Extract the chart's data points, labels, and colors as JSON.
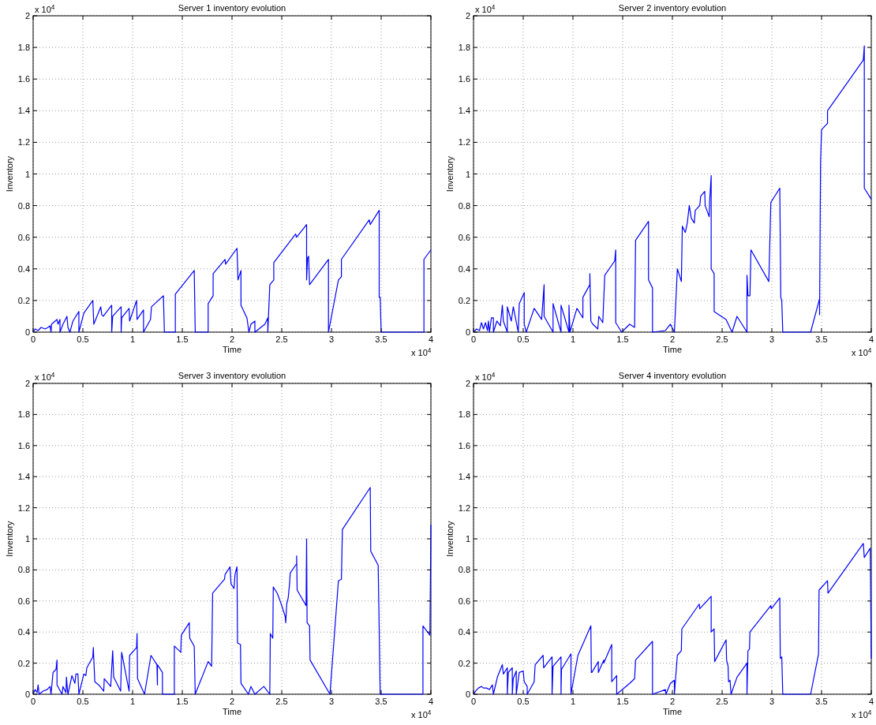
{
  "chart_data": [
    {
      "type": "line",
      "title": "Server 1 inventory evolution",
      "xlabel": "Time",
      "ylabel": "Inventory",
      "annotations": [
        "x 10$^{4}$",
        "x 10$^{4}$"
      ],
      "xlim": [
        0,
        4
      ],
      "ylim": [
        0,
        2
      ],
      "xticks": [
        0,
        0.5,
        1,
        1.5,
        2,
        2.5,
        3,
        3.5,
        4
      ],
      "yticks": [
        0,
        0.2,
        0.4,
        0.6,
        0.8,
        1,
        1.2,
        1.4,
        1.6,
        1.8,
        2
      ],
      "grid": true,
      "color": "#0000ff",
      "x": [
        0,
        0.02,
        0.05,
        0.08,
        0.12,
        0.15,
        0.17,
        0.18,
        0.185,
        0.24,
        0.25,
        0.27,
        0.27,
        0.3,
        0.34,
        0.35,
        0.37,
        0.4,
        0.46,
        0.46,
        0.51,
        0.6,
        0.61,
        0.68,
        0.69,
        0.705,
        0.79,
        0.79,
        0.8,
        0.885,
        0.885,
        0.89,
        0.965,
        0.97,
        1.04,
        1.045,
        1.11,
        1.11,
        1.18,
        1.19,
        1.31,
        1.32,
        1.43,
        1.43,
        1.62,
        1.63,
        1.76,
        1.76,
        1.81,
        1.81,
        1.93,
        1.935,
        2.05,
        2.06,
        2.09,
        2.09,
        2.15,
        2.17,
        2.19,
        2.23,
        2.23,
        2.33,
        2.36,
        2.36,
        2.38,
        2.42,
        2.42,
        2.64,
        2.65,
        2.75,
        2.75,
        2.76,
        2.77,
        2.78,
        2.97,
        2.97,
        3.07,
        3.1,
        3.1,
        3.38,
        3.39,
        3.48,
        3.48,
        3.49,
        3.5,
        3.93,
        3.93,
        4
      ],
      "values": [
        0,
        0.02,
        0.01,
        0.03,
        0.02,
        0.03,
        0.04,
        0,
        0.05,
        0.08,
        0.05,
        0.08,
        0,
        0.05,
        0.1,
        0.03,
        0,
        0.07,
        0.13,
        0,
        0.12,
        0.2,
        0.05,
        0.16,
        0.11,
        0.1,
        0.17,
        0,
        0.1,
        0.16,
        0,
        0.09,
        0.15,
        0.07,
        0.2,
        0.08,
        0.14,
        0,
        0.08,
        0.16,
        0.23,
        0,
        0,
        0.24,
        0.39,
        0,
        0,
        0.18,
        0.23,
        0.37,
        0.46,
        0.43,
        0.53,
        0.33,
        0.39,
        0.17,
        0.09,
        0,
        0.05,
        0.07,
        0,
        0.05,
        0.09,
        0,
        0.3,
        0.33,
        0.44,
        0.62,
        0.6,
        0.68,
        0.33,
        0.47,
        0.48,
        0.3,
        0.46,
        0,
        0.33,
        0.35,
        0.46,
        0.71,
        0.68,
        0.77,
        0.22,
        0.22,
        0,
        0,
        0.46,
        0.52
      ]
    },
    {
      "type": "line",
      "title": "Server 2 inventory evolution",
      "xlabel": "Time",
      "ylabel": "Inventory",
      "annotations": [
        "x 10$^{4}$",
        "x 10$^{4}$"
      ],
      "xlim": [
        0,
        4
      ],
      "ylim": [
        0,
        2
      ],
      "xticks": [
        0,
        0.5,
        1,
        1.5,
        2,
        2.5,
        3,
        3.5,
        4
      ],
      "yticks": [
        0,
        0.2,
        0.4,
        0.6,
        0.8,
        1,
        1.2,
        1.4,
        1.6,
        1.8,
        2
      ],
      "grid": true,
      "color": "#0000ff",
      "x": [
        0,
        0.03,
        0.06,
        0.08,
        0.1,
        0.12,
        0.14,
        0.15,
        0.16,
        0.18,
        0.2,
        0.2,
        0.235,
        0.27,
        0.29,
        0.3,
        0.34,
        0.34,
        0.38,
        0.4,
        0.45,
        0.46,
        0.51,
        0.51,
        0.53,
        0.61,
        0.685,
        0.71,
        0.71,
        0.8,
        0.8,
        0.88,
        0.88,
        0.96,
        0.96,
        0.97,
        1.04,
        1.1,
        1.1,
        1.17,
        1.17,
        1.18,
        1.2,
        1.25,
        1.26,
        1.3,
        1.32,
        1.42,
        1.43,
        1.43,
        1.49,
        1.57,
        1.62,
        1.63,
        1.76,
        1.76,
        1.8,
        1.8,
        1.93,
        1.98,
        2.02,
        2.05,
        2.09,
        2.1,
        2.13,
        2.15,
        2.17,
        2.19,
        2.22,
        2.23,
        2.275,
        2.285,
        2.325,
        2.33,
        2.37,
        2.375,
        2.39,
        2.39,
        2.42,
        2.42,
        2.54,
        2.6,
        2.65,
        2.75,
        2.75,
        2.76,
        2.78,
        2.79,
        2.97,
        2.99,
        3.08,
        3.09,
        3.1,
        3.11,
        3.39,
        3.48,
        3.48,
        3.49,
        3.5,
        3.56,
        3.56,
        3.92,
        3.93,
        3.93,
        4
      ],
      "values": [
        0,
        0.02,
        0.01,
        0.06,
        0.02,
        0.06,
        0.01,
        0.07,
        0,
        0.09,
        0.09,
        0,
        0.07,
        0.04,
        0.17,
        0.07,
        0,
        0.16,
        0.07,
        0.16,
        0,
        0.18,
        0.25,
        0.05,
        0,
        0.15,
        0.08,
        0.3,
        0.1,
        0,
        0.18,
        0,
        0.17,
        0,
        0.17,
        0,
        0.15,
        0.09,
        0.22,
        0.3,
        0.37,
        0.07,
        0.05,
        0.02,
        0.1,
        0.06,
        0.36,
        0.45,
        0.52,
        0.06,
        0,
        0.05,
        0.03,
        0.58,
        0.7,
        0.33,
        0.28,
        0,
        0.01,
        0.05,
        0,
        0.4,
        0.32,
        0.67,
        0.63,
        0.69,
        0.8,
        0.72,
        0.69,
        0.77,
        0.8,
        0.86,
        0.89,
        0.8,
        0.73,
        0.83,
        0.99,
        0.4,
        0.37,
        0.13,
        0.08,
        0,
        0.1,
        0,
        0.36,
        0.23,
        0.23,
        0.52,
        0.32,
        0.82,
        0.91,
        0.22,
        0.2,
        0,
        0,
        0.21,
        0.11,
        1.07,
        1.28,
        1.32,
        1.4,
        1.72,
        1.81,
        0.91,
        0.84
      ]
    },
    {
      "type": "line",
      "title": "Server 3 inventory evolution",
      "xlabel": "Time",
      "ylabel": "Inventory",
      "annotations": [
        "x 10$^{4}$",
        "x 10$^{4}$"
      ],
      "xlim": [
        0,
        4
      ],
      "ylim": [
        0,
        2
      ],
      "xticks": [
        0,
        0.5,
        1,
        1.5,
        2,
        2.5,
        3,
        3.5,
        4
      ],
      "yticks": [
        0,
        0.2,
        0.4,
        0.6,
        0.8,
        1,
        1.2,
        1.4,
        1.6,
        1.8,
        2
      ],
      "grid": true,
      "color": "#0000ff",
      "x": [
        0,
        0.02,
        0.04,
        0.05,
        0.06,
        0.1,
        0.14,
        0.17,
        0.18,
        0.2,
        0.23,
        0.24,
        0.24,
        0.29,
        0.3,
        0.33,
        0.335,
        0.345,
        0.35,
        0.39,
        0.42,
        0.43,
        0.45,
        0.46,
        0.51,
        0.53,
        0.54,
        0.6,
        0.605,
        0.62,
        0.66,
        0.71,
        0.715,
        0.78,
        0.8,
        0.81,
        0.88,
        0.89,
        0.965,
        0.97,
        1.04,
        1.045,
        1.05,
        1.12,
        1.185,
        1.245,
        1.25,
        1.25,
        1.3,
        1.3,
        1.42,
        1.42,
        1.485,
        1.49,
        1.57,
        1.575,
        1.62,
        1.63,
        1.76,
        1.795,
        1.805,
        1.925,
        1.93,
        1.98,
        1.99,
        2.02,
        2.03,
        2.05,
        2.055,
        2.085,
        2.09,
        2.165,
        2.19,
        2.23,
        2.32,
        2.38,
        2.385,
        2.41,
        2.415,
        2.455,
        2.495,
        2.535,
        2.54,
        2.55,
        2.565,
        2.58,
        2.585,
        2.65,
        2.65,
        2.655,
        2.745,
        2.75,
        2.755,
        2.78,
        2.785,
        2.985,
        3.07,
        3.1,
        3.11,
        3.39,
        3.395,
        3.47,
        3.49,
        3.92,
        3.92,
        3.99,
        4
      ],
      "values": [
        0,
        0.03,
        0.01,
        0.06,
        0,
        0.02,
        0.03,
        0.05,
        0,
        0.14,
        0.16,
        0.22,
        0.06,
        0,
        0.05,
        0.01,
        0.11,
        0.03,
        0,
        0.12,
        0.07,
        0.13,
        0.13,
        0,
        0.13,
        0.12,
        0.17,
        0.24,
        0.3,
        0.08,
        0.06,
        0.02,
        0.1,
        0.05,
        0.28,
        0.11,
        0.02,
        0.27,
        0.02,
        0.25,
        0.3,
        0.39,
        0.1,
        0,
        0.25,
        0.19,
        0.06,
        0.19,
        0.14,
        0,
        0,
        0.31,
        0.27,
        0.38,
        0.46,
        0.36,
        0.31,
        0,
        0.21,
        0.18,
        0.65,
        0.74,
        0.77,
        0.82,
        0.71,
        0.68,
        0.77,
        0.82,
        0.33,
        0.32,
        0.07,
        0,
        0.05,
        0,
        0.05,
        0,
        0.39,
        0.36,
        0.69,
        0.65,
        0.58,
        0.5,
        0.46,
        0.58,
        0.62,
        0.72,
        0.78,
        0.84,
        0.89,
        0.67,
        0.57,
        1,
        0.46,
        0.44,
        0.22,
        0,
        0.73,
        0.74,
        1.06,
        1.33,
        0.92,
        0.83,
        0,
        0,
        0.44,
        0.38,
        1.09
      ]
    },
    {
      "type": "line",
      "title": "Server 4 inventory evolution",
      "xlabel": "Time",
      "ylabel": "Inventory",
      "annotations": [
        "x 10$^{4}$",
        "x 10$^{4}$"
      ],
      "xlim": [
        0,
        4
      ],
      "ylim": [
        0,
        2
      ],
      "xticks": [
        0,
        0.5,
        1,
        1.5,
        2,
        2.5,
        3,
        3.5,
        4
      ],
      "yticks": [
        0,
        0.2,
        0.4,
        0.6,
        0.8,
        1,
        1.2,
        1.4,
        1.6,
        1.8,
        2
      ],
      "grid": true,
      "color": "#0000ff",
      "x": [
        0,
        0.02,
        0.05,
        0.08,
        0.1,
        0.13,
        0.16,
        0.19,
        0.2,
        0.24,
        0.29,
        0.3,
        0.34,
        0.34,
        0.35,
        0.39,
        0.39,
        0.4,
        0.43,
        0.43,
        0.46,
        0.5,
        0.51,
        0.54,
        0.54,
        0.61,
        0.62,
        0.7,
        0.705,
        0.79,
        0.79,
        0.8,
        0.88,
        0.88,
        0.885,
        0.98,
        0.98,
        1.05,
        1.18,
        1.185,
        1.19,
        1.255,
        1.255,
        1.31,
        1.31,
        1.39,
        1.39,
        1.44,
        1.44,
        1.57,
        1.62,
        1.63,
        1.8,
        1.8,
        1.93,
        1.935,
        1.98,
        2.02,
        2.02,
        2.05,
        2.09,
        2.095,
        2.27,
        2.275,
        2.39,
        2.39,
        2.42,
        2.425,
        2.54,
        2.545,
        2.56,
        2.565,
        2.58,
        2.59,
        2.65,
        2.75,
        2.75,
        2.76,
        2.775,
        2.78,
        2.99,
        2.995,
        3.08,
        3.085,
        3.1,
        3.11,
        3.39,
        3.47,
        3.475,
        3.56,
        3.565,
        3.92,
        3.93,
        3.99,
        4
      ],
      "values": [
        0,
        0.02,
        0.04,
        0.05,
        0.04,
        0.04,
        0.03,
        0.06,
        0,
        0.11,
        0.19,
        0.13,
        0.17,
        0,
        0.14,
        0.17,
        0,
        0.1,
        0.15,
        0,
        0.14,
        0.15,
        0.08,
        0.05,
        0,
        0.08,
        0.19,
        0.25,
        0.17,
        0.24,
        0,
        0.18,
        0.24,
        0,
        0.16,
        0.26,
        0,
        0.25,
        0.44,
        0.14,
        0.14,
        0.21,
        0.14,
        0.22,
        0.2,
        0.32,
        0.08,
        0.12,
        0,
        0.07,
        0.1,
        0.22,
        0.34,
        0,
        0.03,
        0,
        0.07,
        0.09,
        0,
        0.25,
        0.28,
        0.42,
        0.58,
        0.55,
        0.63,
        0.4,
        0.42,
        0.21,
        0.35,
        0.22,
        0.18,
        0.08,
        0.09,
        0,
        0.11,
        0.2,
        0,
        0.28,
        0.29,
        0.4,
        0.57,
        0.55,
        0.62,
        0.23,
        0.24,
        0,
        0,
        0.26,
        0.67,
        0.73,
        0.65,
        0.97,
        0.88,
        0.94,
        0.23
      ]
    }
  ]
}
